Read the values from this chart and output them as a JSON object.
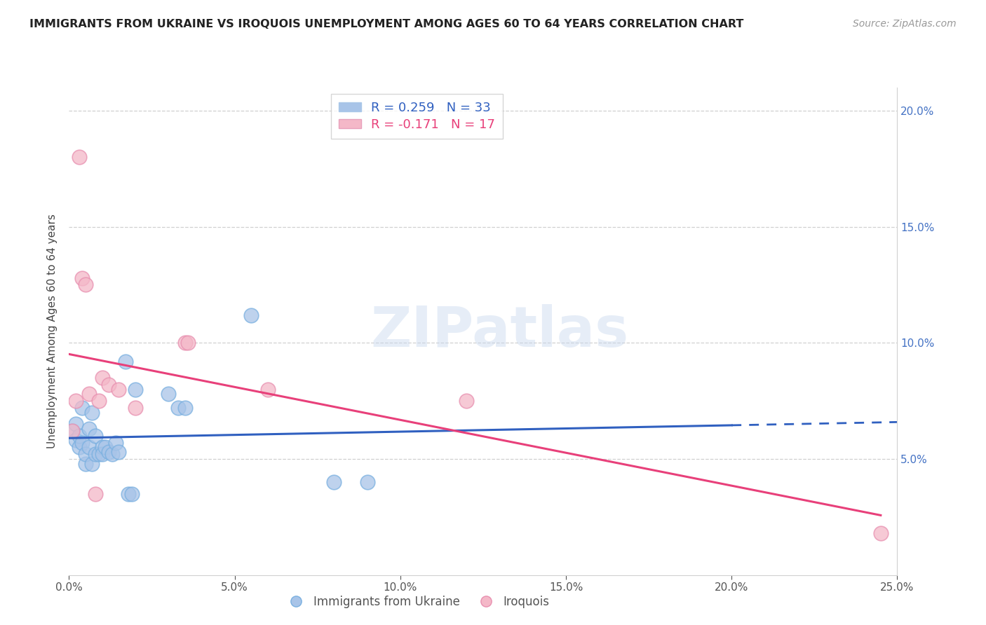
{
  "title": "IMMIGRANTS FROM UKRAINE VS IROQUOIS UNEMPLOYMENT AMONG AGES 60 TO 64 YEARS CORRELATION CHART",
  "source": "Source: ZipAtlas.com",
  "ylabel": "Unemployment Among Ages 60 to 64 years",
  "xlim": [
    0.0,
    0.25
  ],
  "ylim": [
    0.0,
    0.21
  ],
  "ukraine_color": "#a8c4e8",
  "iroquois_color": "#f4b8c8",
  "ukraine_line_color": "#3060c0",
  "iroquois_line_color": "#e8407a",
  "watermark": "ZIPatlas",
  "ukraine_points": [
    [
      0.001,
      0.062
    ],
    [
      0.002,
      0.058
    ],
    [
      0.002,
      0.065
    ],
    [
      0.003,
      0.055
    ],
    [
      0.003,
      0.06
    ],
    [
      0.004,
      0.057
    ],
    [
      0.004,
      0.072
    ],
    [
      0.005,
      0.048
    ],
    [
      0.005,
      0.052
    ],
    [
      0.006,
      0.063
    ],
    [
      0.006,
      0.055
    ],
    [
      0.007,
      0.048
    ],
    [
      0.007,
      0.07
    ],
    [
      0.008,
      0.06
    ],
    [
      0.008,
      0.052
    ],
    [
      0.009,
      0.052
    ],
    [
      0.01,
      0.055
    ],
    [
      0.01,
      0.052
    ],
    [
      0.011,
      0.055
    ],
    [
      0.012,
      0.053
    ],
    [
      0.013,
      0.052
    ],
    [
      0.014,
      0.057
    ],
    [
      0.015,
      0.053
    ],
    [
      0.017,
      0.092
    ],
    [
      0.018,
      0.035
    ],
    [
      0.019,
      0.035
    ],
    [
      0.02,
      0.08
    ],
    [
      0.03,
      0.078
    ],
    [
      0.033,
      0.072
    ],
    [
      0.035,
      0.072
    ],
    [
      0.055,
      0.112
    ],
    [
      0.08,
      0.04
    ],
    [
      0.09,
      0.04
    ]
  ],
  "iroquois_points": [
    [
      0.001,
      0.062
    ],
    [
      0.002,
      0.075
    ],
    [
      0.003,
      0.18
    ],
    [
      0.004,
      0.128
    ],
    [
      0.005,
      0.125
    ],
    [
      0.006,
      0.078
    ],
    [
      0.008,
      0.035
    ],
    [
      0.009,
      0.075
    ],
    [
      0.01,
      0.085
    ],
    [
      0.012,
      0.082
    ],
    [
      0.015,
      0.08
    ],
    [
      0.02,
      0.072
    ],
    [
      0.035,
      0.1
    ],
    [
      0.036,
      0.1
    ],
    [
      0.06,
      0.08
    ],
    [
      0.12,
      0.075
    ],
    [
      0.245,
      0.018
    ]
  ],
  "ukraine_R": 0.259,
  "ukraine_N": 33,
  "iroquois_R": -0.171,
  "iroquois_N": 17,
  "background_color": "#ffffff",
  "grid_color": "#d0d0d0"
}
